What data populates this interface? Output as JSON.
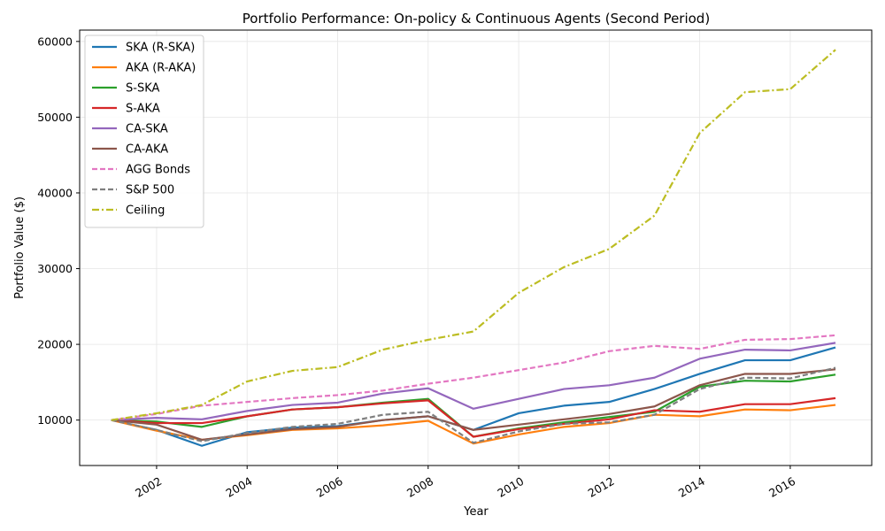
{
  "chart_data": {
    "type": "line",
    "title": "Portfolio Performance: On-policy & Continuous Agents (Second Period)",
    "xlabel": "Year",
    "ylabel": "Portfolio Value ($)",
    "xlim": [
      2000.3,
      2017.8
    ],
    "ylim": [
      4000,
      61500
    ],
    "x_ticks": [
      2002,
      2004,
      2006,
      2008,
      2010,
      2012,
      2014,
      2016
    ],
    "y_ticks": [
      10000,
      20000,
      30000,
      40000,
      50000,
      60000
    ],
    "grid": true,
    "legend_position": "upper-left",
    "x": [
      2001,
      2002,
      2003,
      2004,
      2005,
      2006,
      2007,
      2008,
      2009,
      2010,
      2011,
      2012,
      2013,
      2014,
      2015,
      2016,
      2017
    ],
    "series": [
      {
        "name": "SKA (R-SKA)",
        "color": "#1f77b4",
        "dash": "solid",
        "values": [
          10000,
          8700,
          6600,
          8400,
          9000,
          9200,
          10000,
          10500,
          8700,
          10900,
          11900,
          12400,
          14100,
          16100,
          17900,
          17900,
          19600
        ]
      },
      {
        "name": "AKA (R-AKA)",
        "color": "#ff7f0e",
        "dash": "solid",
        "values": [
          10000,
          8600,
          7400,
          8000,
          8700,
          8900,
          9300,
          9900,
          6900,
          8100,
          9100,
          9600,
          10700,
          10500,
          11400,
          11300,
          12000
        ]
      },
      {
        "name": "S-SKA",
        "color": "#2ca02c",
        "dash": "solid",
        "values": [
          10000,
          9800,
          9100,
          10500,
          11400,
          11700,
          12300,
          12800,
          7800,
          8900,
          9700,
          10400,
          11100,
          14400,
          15200,
          15100,
          16000
        ]
      },
      {
        "name": "S-AKA",
        "color": "#d62728",
        "dash": "solid",
        "values": [
          10000,
          9600,
          9600,
          10500,
          11400,
          11700,
          12200,
          12600,
          7800,
          8800,
          9500,
          10100,
          11300,
          11100,
          12100,
          12100,
          12900
        ]
      },
      {
        "name": "CA-SKA",
        "color": "#9467bd",
        "dash": "solid",
        "values": [
          10000,
          10300,
          10100,
          11200,
          12000,
          12300,
          13500,
          14200,
          11500,
          12800,
          14100,
          14600,
          15600,
          18100,
          19300,
          19200,
          20200
        ]
      },
      {
        "name": "CA-AKA",
        "color": "#8c564b",
        "dash": "solid",
        "values": [
          10000,
          9400,
          7400,
          8100,
          8800,
          9100,
          10000,
          10500,
          8700,
          9400,
          10100,
          10800,
          11800,
          14600,
          16100,
          16100,
          16700
        ]
      },
      {
        "name": "AGG Bonds",
        "color": "#e377c2",
        "dash": "dashed",
        "values": [
          10000,
          10800,
          11900,
          12400,
          12900,
          13300,
          13900,
          14800,
          15600,
          16600,
          17600,
          19100,
          19800,
          19400,
          20600,
          20700,
          21200
        ]
      },
      {
        "name": "S&P 500",
        "color": "#7f7f7f",
        "dash": "dashed",
        "values": [
          10000,
          8700,
          7200,
          8300,
          9100,
          9500,
          10700,
          11100,
          7000,
          8500,
          9500,
          9700,
          10700,
          14100,
          15600,
          15500,
          16900
        ]
      },
      {
        "name": "Ceiling",
        "color": "#bcbd22",
        "dash": "dashdot",
        "values": [
          10000,
          10900,
          12000,
          15100,
          16500,
          17000,
          19300,
          20600,
          21700,
          26800,
          30200,
          32600,
          37000,
          47900,
          53300,
          53700,
          58900
        ]
      }
    ]
  }
}
